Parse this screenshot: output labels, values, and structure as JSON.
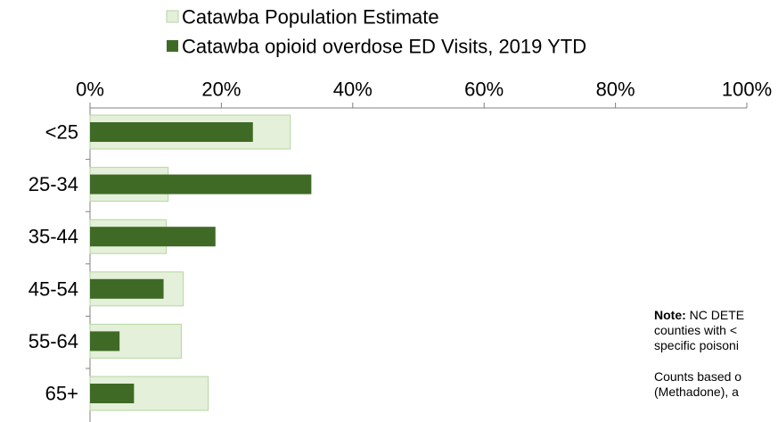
{
  "chart_data": {
    "type": "bar",
    "orientation": "horizontal",
    "categories": [
      "<25",
      "25-34",
      "35-44",
      "45-54",
      "55-64",
      "65+"
    ],
    "series": [
      {
        "name": "Catawba Population Estimate",
        "values": [
          30.5,
          11.9,
          11.6,
          14.2,
          13.9,
          18.0
        ],
        "color": "#e4f0d9",
        "stroke": "#b5d6a0"
      },
      {
        "name": "Catawba opioid overdose ED Visits, 2019 YTD",
        "values": [
          24.8,
          33.7,
          19.1,
          11.2,
          4.5,
          6.7
        ],
        "color": "#3f6a26"
      }
    ],
    "xlim": [
      0,
      100
    ],
    "x_ticks": [
      "0%",
      "20%",
      "40%",
      "60%",
      "80%",
      "100%"
    ],
    "tick_values": [
      0,
      20,
      40,
      60,
      80,
      100
    ],
    "axis_position": "top",
    "legend_position": "top",
    "grid": false
  },
  "note": {
    "heading": "Note:",
    "line1_rest": " NC DETE",
    "line2": "counties with <",
    "line3": "specific poisoni",
    "line4": "Counts based o",
    "line5": "(Methadone), a"
  }
}
